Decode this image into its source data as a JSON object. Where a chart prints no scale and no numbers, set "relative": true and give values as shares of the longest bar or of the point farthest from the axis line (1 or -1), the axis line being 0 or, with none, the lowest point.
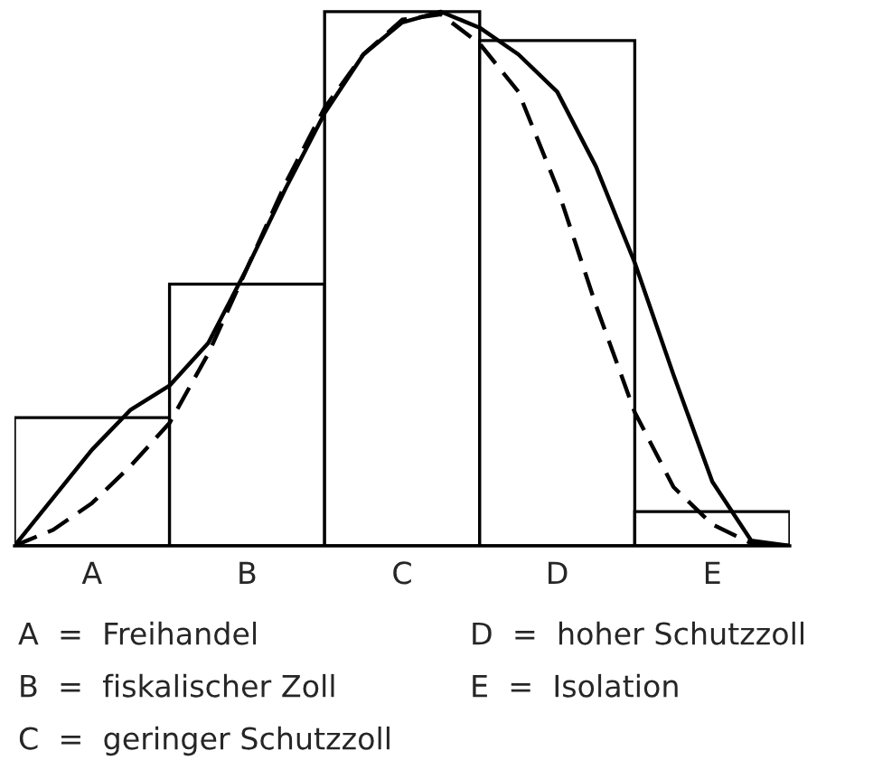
{
  "chart_data": [
    {
      "type": "bar",
      "relative": true,
      "categories": [
        "A",
        "B",
        "C",
        "D",
        "E"
      ],
      "series": [
        {
          "type": "bar",
          "color": "#ffffff",
          "values": [
            0.24,
            0.49,
            1.0,
            0.946,
            0.064
          ]
        }
      ],
      "annotations": [
        "A  =  Freihandel",
        "D  =  hoher Schutzzoll",
        "B  =  fiskalischer Zoll",
        "E  =  Isolation",
        "C  =  geringer Schutzzoll"
      ],
      "grid": false,
      "legend": false
    },
    {
      "type": "line",
      "relative": true,
      "categories": [
        null,
        null,
        null,
        null,
        null,
        null,
        null,
        null,
        null,
        null,
        null,
        null,
        null,
        null,
        null,
        null,
        null,
        null,
        null,
        null,
        null
      ],
      "series": [
        {
          "color": "#000000",
          "line_style": "solid",
          "values": [
            0,
            0.09,
            0.18,
            0.255,
            0.3,
            0.38,
            0.52,
            0.67,
            0.81,
            0.92,
            0.98,
            1.0,
            0.97,
            0.92,
            0.85,
            0.71,
            0.53,
            0.32,
            0.12,
            0.01,
            0
          ]
        },
        {
          "color": "#000000",
          "line_style": "dashed",
          "values": [
            0,
            0.03,
            0.08,
            0.15,
            0.23,
            0.36,
            0.52,
            0.68,
            0.82,
            0.92,
            0.985,
            0.995,
            0.94,
            0.85,
            0.67,
            0.45,
            0.25,
            0.11,
            0.04,
            0.005,
            0
          ]
        }
      ],
      "grid": false,
      "legend": false
    }
  ]
}
